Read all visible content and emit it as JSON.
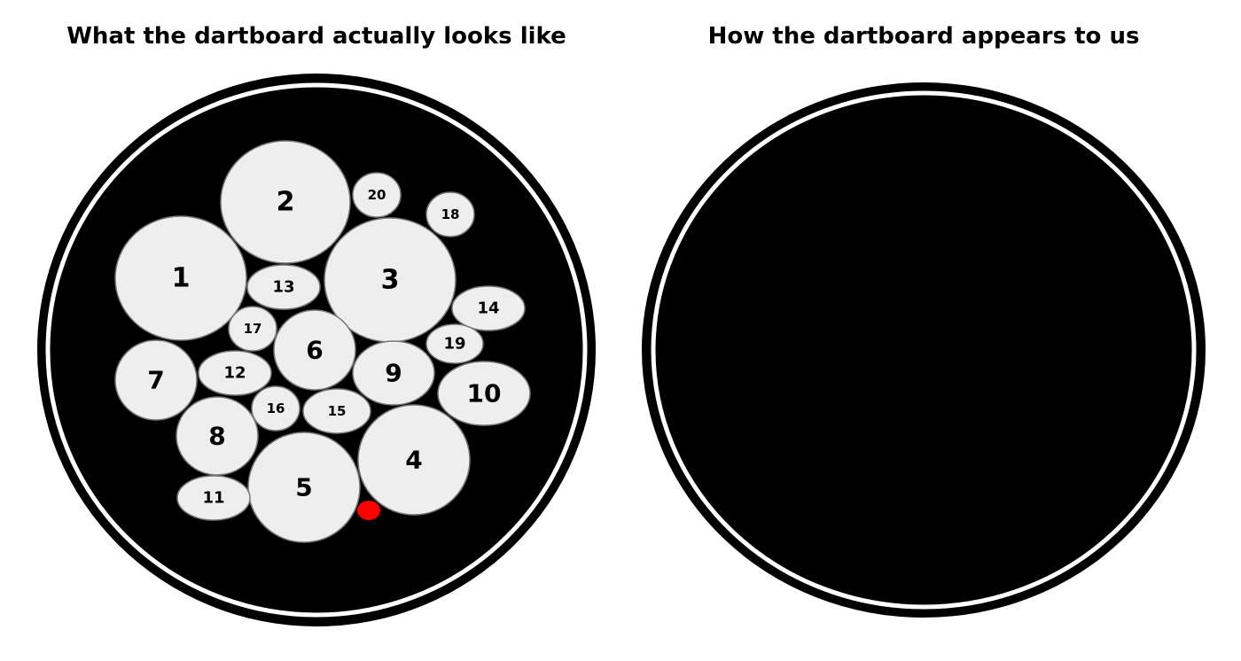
{
  "titles": {
    "left": "What the dartboard actually looks like",
    "right": "How the dartboard appears to us"
  },
  "colors": {
    "board": "#000000",
    "ring": "#ffffff",
    "region_fill": "#eeeeee",
    "region_stroke": "#777777",
    "dart": "#ff0000",
    "background": "#ffffff"
  },
  "regions": [
    {
      "label": "1"
    },
    {
      "label": "2"
    },
    {
      "label": "3"
    },
    {
      "label": "4"
    },
    {
      "label": "5"
    },
    {
      "label": "6"
    },
    {
      "label": "7"
    },
    {
      "label": "8"
    },
    {
      "label": "9"
    },
    {
      "label": "10"
    },
    {
      "label": "11"
    },
    {
      "label": "12"
    },
    {
      "label": "13"
    },
    {
      "label": "14"
    },
    {
      "label": "15"
    },
    {
      "label": "16"
    },
    {
      "label": "17"
    },
    {
      "label": "18"
    },
    {
      "label": "19"
    },
    {
      "label": "20"
    }
  ],
  "dart": {
    "color": "red"
  }
}
